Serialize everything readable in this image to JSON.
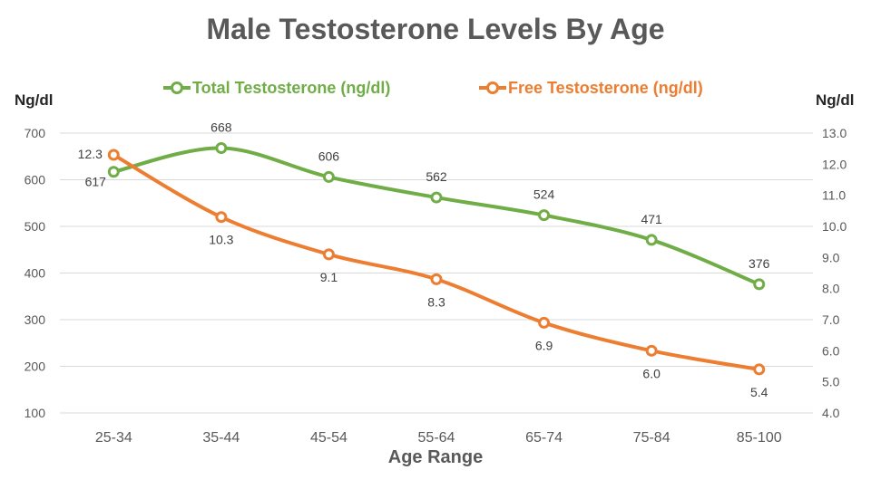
{
  "chart_data": {
    "type": "line",
    "title": "Male Testosterone Levels By Age",
    "xlabel": "Age Range",
    "ylabel_left": "Ng/dl",
    "ylabel_right": "Ng/dl",
    "categories": [
      "25-34",
      "35-44",
      "45-54",
      "55-64",
      "65-74",
      "75-84",
      "85-100"
    ],
    "y_left": {
      "min": 100,
      "max": 700,
      "ticks": [
        "100",
        "200",
        "300",
        "400",
        "500",
        "600",
        "700"
      ]
    },
    "y_right": {
      "min": 4.0,
      "max": 13.0,
      "ticks": [
        "4.0",
        "5.0",
        "6.0",
        "7.0",
        "8.0",
        "9.0",
        "10.0",
        "11.0",
        "12.0",
        "13.0"
      ]
    },
    "grid": true,
    "legend_position": "top",
    "series": [
      {
        "name": "Total Testosterone (ng/dl)",
        "axis": "left",
        "color": "#70ad47",
        "values": [
          617,
          668,
          606,
          562,
          524,
          471,
          376
        ],
        "labels": [
          "617",
          "668",
          "606",
          "562",
          "524",
          "471",
          "376"
        ]
      },
      {
        "name": "Free Testosterone (ng/dl)",
        "axis": "right",
        "color": "#ed7d31",
        "values": [
          12.3,
          10.3,
          9.1,
          8.3,
          6.9,
          6.0,
          5.4
        ],
        "labels": [
          "12.3",
          "10.3",
          "9.1",
          "8.3",
          "6.9",
          "6.0",
          "5.4"
        ]
      }
    ]
  }
}
